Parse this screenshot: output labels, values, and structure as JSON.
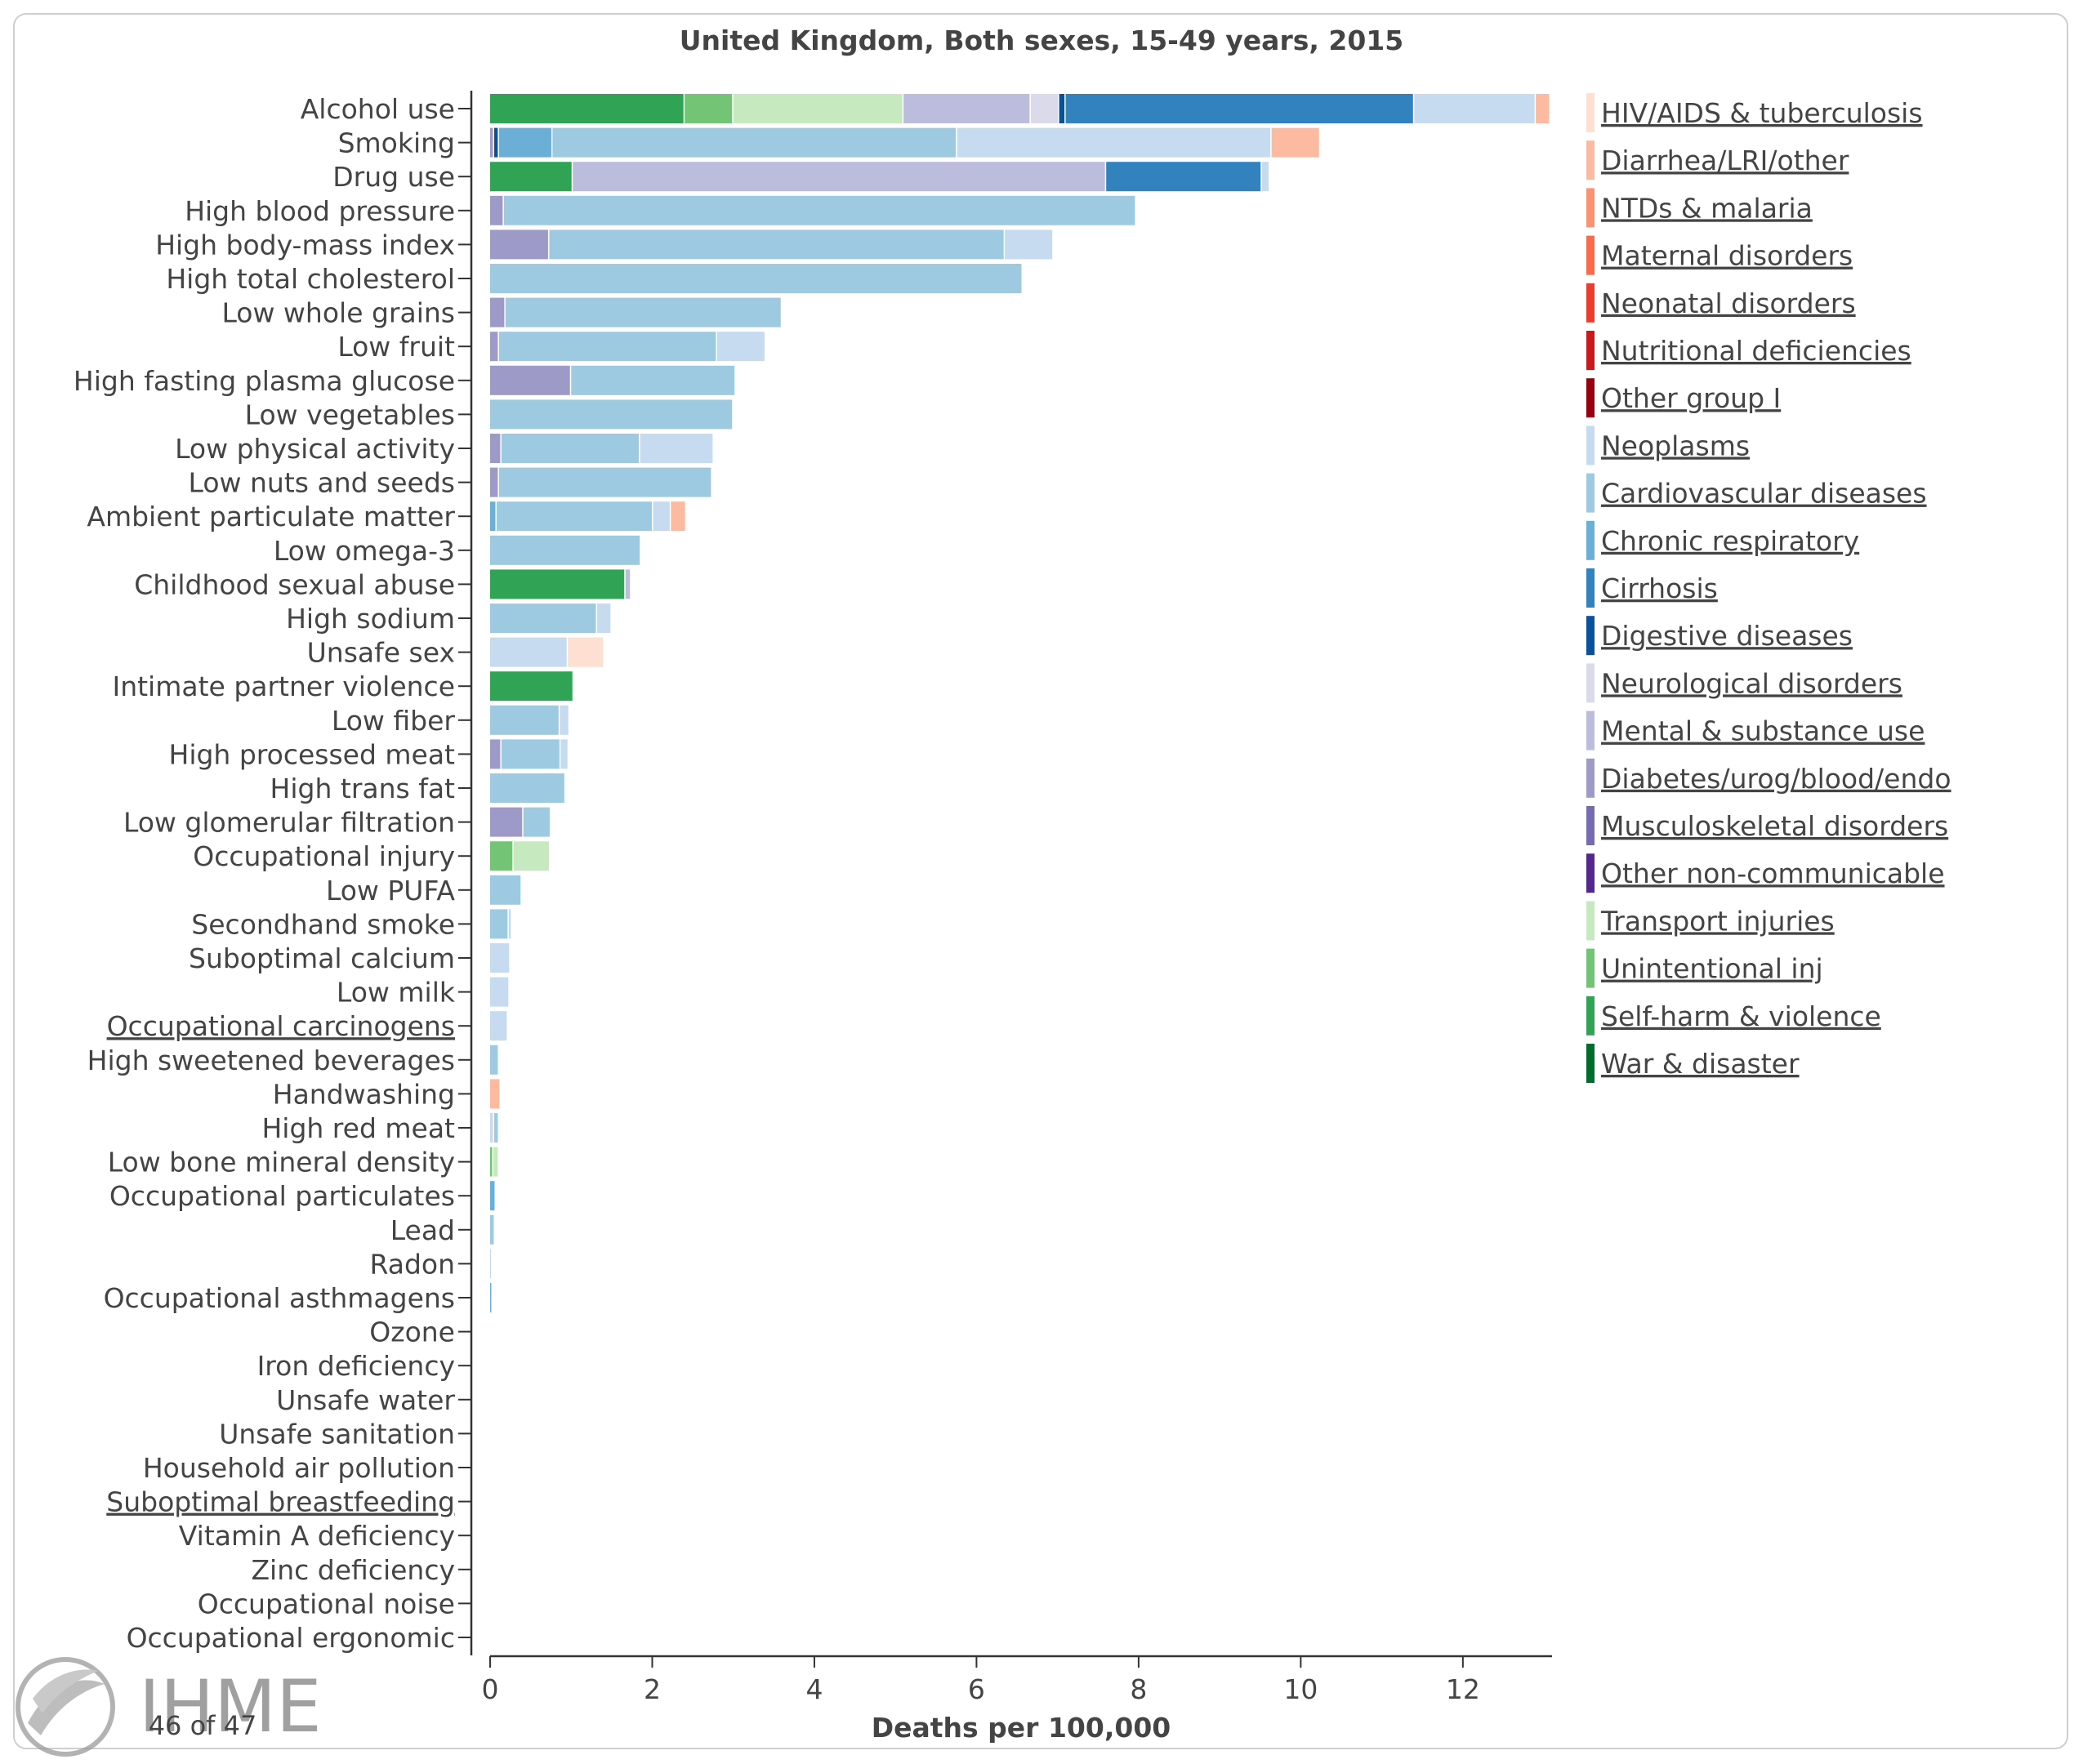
{
  "chart_data": {
    "type": "bar",
    "orientation": "horizontal",
    "stacked": true,
    "title": "United Kingdom, Both sexes, 15-49 years, 2015",
    "xlabel": "Deaths per 100,000",
    "ylabel": "",
    "xlim": [
      0,
      13.1
    ],
    "x_ticks": [
      "0",
      "2",
      "4",
      "6",
      "8",
      "10",
      "12"
    ],
    "legend_position": "right",
    "legend": [
      {
        "name": "HIV/AIDS & tuberculosis",
        "color": "#fee0d2"
      },
      {
        "name": "Diarrhea/LRI/other",
        "color": "#fcbba1"
      },
      {
        "name": "NTDs & malaria",
        "color": "#fc9272"
      },
      {
        "name": "Maternal disorders",
        "color": "#fb6a4a"
      },
      {
        "name": "Neonatal disorders",
        "color": "#ef3b2c"
      },
      {
        "name": "Nutritional deficiencies",
        "color": "#cb181d"
      },
      {
        "name": "Other group I",
        "color": "#99000d"
      },
      {
        "name": "Neoplasms",
        "color": "#c6dbef"
      },
      {
        "name": "Cardiovascular diseases",
        "color": "#9ecae1"
      },
      {
        "name": "Chronic respiratory",
        "color": "#6baed6"
      },
      {
        "name": "Cirrhosis",
        "color": "#3182bd"
      },
      {
        "name": "Digestive diseases",
        "color": "#08519c"
      },
      {
        "name": "Neurological disorders",
        "color": "#dadaeb"
      },
      {
        "name": "Mental & substance use",
        "color": "#bcbddc"
      },
      {
        "name": "Diabetes/urog/blood/endo",
        "color": "#9e9ac8"
      },
      {
        "name": "Musculoskeletal disorders",
        "color": "#756bb1"
      },
      {
        "name": "Other non-communicable",
        "color": "#54278f"
      },
      {
        "name": "Transport injuries",
        "color": "#c7e9c0"
      },
      {
        "name": "Unintentional inj",
        "color": "#74c476"
      },
      {
        "name": "Self-harm & violence",
        "color": "#31a354"
      },
      {
        "name": "War & disaster",
        "color": "#006d2c"
      }
    ],
    "bars": [
      {
        "label": "Alcohol use",
        "segments": [
          {
            "cause": "Self-harm & violence",
            "value": 2.4
          },
          {
            "cause": "Unintentional inj",
            "value": 0.6
          },
          {
            "cause": "Transport injuries",
            "value": 2.1
          },
          {
            "cause": "Mental & substance use",
            "value": 1.57
          },
          {
            "cause": "Neurological disorders",
            "value": 0.35
          },
          {
            "cause": "Digestive diseases",
            "value": 0.08
          },
          {
            "cause": "Cirrhosis",
            "value": 4.3
          },
          {
            "cause": "Neoplasms",
            "value": 1.5
          },
          {
            "cause": "Diarrhea/LRI/other",
            "value": 0.18
          }
        ]
      },
      {
        "label": "Smoking",
        "segments": [
          {
            "cause": "Diabetes/urog/blood/endo",
            "value": 0.05
          },
          {
            "cause": "Digestive diseases",
            "value": 0.06
          },
          {
            "cause": "Chronic respiratory",
            "value": 0.66
          },
          {
            "cause": "Cardiovascular diseases",
            "value": 4.99
          },
          {
            "cause": "Neoplasms",
            "value": 3.88
          },
          {
            "cause": "Diarrhea/LRI/other",
            "value": 0.6
          }
        ]
      },
      {
        "label": "Drug use",
        "segments": [
          {
            "cause": "Self-harm & violence",
            "value": 1.02
          },
          {
            "cause": "Mental & substance use",
            "value": 6.58
          },
          {
            "cause": "Cirrhosis",
            "value": 1.92
          },
          {
            "cause": "Neoplasms",
            "value": 0.1
          }
        ]
      },
      {
        "label": "High blood pressure",
        "segments": [
          {
            "cause": "Diabetes/urog/blood/endo",
            "value": 0.17
          },
          {
            "cause": "Cardiovascular diseases",
            "value": 7.8
          }
        ]
      },
      {
        "label": "High body-mass index",
        "segments": [
          {
            "cause": "Diabetes/urog/blood/endo",
            "value": 0.73
          },
          {
            "cause": "Cardiovascular diseases",
            "value": 5.62
          },
          {
            "cause": "Neoplasms",
            "value": 0.6
          }
        ]
      },
      {
        "label": "High total cholesterol",
        "segments": [
          {
            "cause": "Cardiovascular diseases",
            "value": 6.57
          }
        ]
      },
      {
        "label": "Low whole grains",
        "segments": [
          {
            "cause": "Diabetes/urog/blood/endo",
            "value": 0.19
          },
          {
            "cause": "Cardiovascular diseases",
            "value": 3.41
          }
        ]
      },
      {
        "label": "Low fruit",
        "segments": [
          {
            "cause": "Diabetes/urog/blood/endo",
            "value": 0.11
          },
          {
            "cause": "Cardiovascular diseases",
            "value": 2.69
          },
          {
            "cause": "Neoplasms",
            "value": 0.6
          }
        ]
      },
      {
        "label": "High fasting plasma glucose",
        "segments": [
          {
            "cause": "Diabetes/urog/blood/endo",
            "value": 1.0
          },
          {
            "cause": "Cardiovascular diseases",
            "value": 2.03
          }
        ]
      },
      {
        "label": "Low vegetables",
        "segments": [
          {
            "cause": "Cardiovascular diseases",
            "value": 3.0
          }
        ]
      },
      {
        "label": "Low physical activity",
        "segments": [
          {
            "cause": "Diabetes/urog/blood/endo",
            "value": 0.14
          },
          {
            "cause": "Cardiovascular diseases",
            "value": 1.71
          },
          {
            "cause": "Neoplasms",
            "value": 0.91
          }
        ]
      },
      {
        "label": "Low nuts and seeds",
        "segments": [
          {
            "cause": "Diabetes/urog/blood/endo",
            "value": 0.11
          },
          {
            "cause": "Cardiovascular diseases",
            "value": 2.63
          }
        ]
      },
      {
        "label": "Ambient particulate matter",
        "segments": [
          {
            "cause": "Chronic respiratory",
            "value": 0.08
          },
          {
            "cause": "Cardiovascular diseases",
            "value": 1.93
          },
          {
            "cause": "Neoplasms",
            "value": 0.22
          },
          {
            "cause": "Diarrhea/LRI/other",
            "value": 0.19
          }
        ]
      },
      {
        "label": "Low omega-3",
        "segments": [
          {
            "cause": "Cardiovascular diseases",
            "value": 1.86
          }
        ]
      },
      {
        "label": "Childhood sexual abuse",
        "segments": [
          {
            "cause": "Self-harm & violence",
            "value": 1.67
          },
          {
            "cause": "Mental & substance use",
            "value": 0.07
          }
        ]
      },
      {
        "label": "High sodium",
        "segments": [
          {
            "cause": "Cardiovascular diseases",
            "value": 1.32
          },
          {
            "cause": "Neoplasms",
            "value": 0.18
          }
        ]
      },
      {
        "label": "Unsafe sex",
        "segments": [
          {
            "cause": "Neoplasms",
            "value": 0.96
          },
          {
            "cause": "HIV/AIDS & tuberculosis",
            "value": 0.45
          }
        ]
      },
      {
        "label": "Intimate partner violence",
        "segments": [
          {
            "cause": "Self-harm & violence",
            "value": 1.03
          }
        ]
      },
      {
        "label": "Low fiber",
        "segments": [
          {
            "cause": "Cardiovascular diseases",
            "value": 0.86
          },
          {
            "cause": "Neoplasms",
            "value": 0.12
          }
        ]
      },
      {
        "label": "High processed meat",
        "segments": [
          {
            "cause": "Diabetes/urog/blood/endo",
            "value": 0.14
          },
          {
            "cause": "Cardiovascular diseases",
            "value": 0.73
          },
          {
            "cause": "Neoplasms",
            "value": 0.1
          }
        ]
      },
      {
        "label": "High trans fat",
        "segments": [
          {
            "cause": "Cardiovascular diseases",
            "value": 0.93
          }
        ]
      },
      {
        "label": "Low glomerular filtration",
        "segments": [
          {
            "cause": "Diabetes/urog/blood/endo",
            "value": 0.41
          },
          {
            "cause": "Cardiovascular diseases",
            "value": 0.34
          }
        ]
      },
      {
        "label": "Occupational injury",
        "segments": [
          {
            "cause": "Unintentional inj",
            "value": 0.29
          },
          {
            "cause": "Transport injuries",
            "value": 0.45
          }
        ]
      },
      {
        "label": "Low PUFA",
        "segments": [
          {
            "cause": "Cardiovascular diseases",
            "value": 0.39
          }
        ]
      },
      {
        "label": "Secondhand smoke",
        "segments": [
          {
            "cause": "Cardiovascular diseases",
            "value": 0.23
          },
          {
            "cause": "Neoplasms",
            "value": 0.04
          }
        ]
      },
      {
        "label": "Suboptimal calcium",
        "segments": [
          {
            "cause": "Neoplasms",
            "value": 0.25
          }
        ]
      },
      {
        "label": "Low milk",
        "segments": [
          {
            "cause": "Neoplasms",
            "value": 0.24
          }
        ]
      },
      {
        "label": "Occupational carcinogens",
        "segments": [
          {
            "cause": "Neoplasms",
            "value": 0.22
          }
        ]
      },
      {
        "label": "High sweetened beverages",
        "segments": [
          {
            "cause": "Cardiovascular diseases",
            "value": 0.11
          }
        ]
      },
      {
        "label": "Handwashing",
        "segments": [
          {
            "cause": "Diarrhea/LRI/other",
            "value": 0.13
          }
        ]
      },
      {
        "label": "High red meat",
        "segments": [
          {
            "cause": "Neoplasms",
            "value": 0.05
          },
          {
            "cause": "Cardiovascular diseases",
            "value": 0.06
          }
        ]
      },
      {
        "label": "Low bone mineral density",
        "segments": [
          {
            "cause": "Unintentional inj",
            "value": 0.04
          },
          {
            "cause": "Transport injuries",
            "value": 0.07
          }
        ]
      },
      {
        "label": "Occupational particulates",
        "segments": [
          {
            "cause": "Chronic respiratory",
            "value": 0.07
          }
        ]
      },
      {
        "label": "Lead",
        "segments": [
          {
            "cause": "Cardiovascular diseases",
            "value": 0.06
          }
        ]
      },
      {
        "label": "Radon",
        "segments": [
          {
            "cause": "Neoplasms",
            "value": 0.02
          }
        ]
      },
      {
        "label": "Occupational asthmagens",
        "segments": [
          {
            "cause": "Chronic respiratory",
            "value": 0.03
          }
        ]
      },
      {
        "label": "Ozone",
        "segments": []
      },
      {
        "label": "Iron deficiency",
        "segments": []
      },
      {
        "label": "Unsafe water",
        "segments": []
      },
      {
        "label": "Unsafe sanitation",
        "segments": []
      },
      {
        "label": "Household air pollution",
        "segments": []
      },
      {
        "label": "Suboptimal breastfeeding",
        "segments": []
      },
      {
        "label": "Vitamin A deficiency",
        "segments": []
      },
      {
        "label": "Zinc deficiency",
        "segments": []
      },
      {
        "label": "Occupational noise",
        "segments": []
      },
      {
        "label": "Occupational ergonomic",
        "segments": []
      }
    ],
    "underlined_labels": [
      "Occupational carcinogens",
      "Suboptimal breastfeeding"
    ]
  },
  "footer": {
    "logo_text": "IHME",
    "page_indicator": "46 of 47"
  }
}
